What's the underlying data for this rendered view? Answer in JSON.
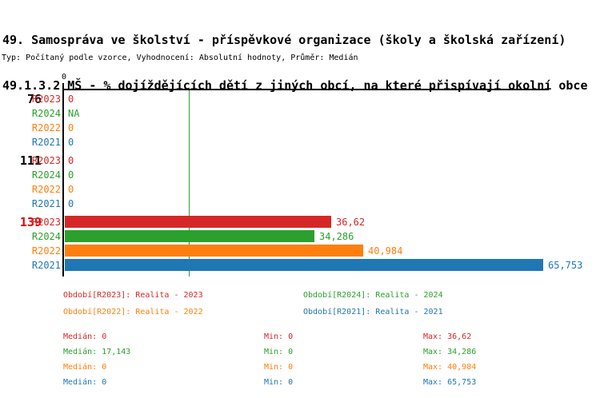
{
  "header": {
    "title_line1": "49. Samospráva ve školství - příspěvkové organizace (školy a školská zařízení)",
    "title_line2": "49.1.3.2 MŠ - % dojíždějících dětí z jiných obcí, na které přispívají okolní obce",
    "meta_line": "Typ: Počítaný podle vzorce, Vyhodnocení: Absolutní hodnoty, Průměr: Medián"
  },
  "colors": {
    "axis": "#000000",
    "r2023_red": "#d62728",
    "r2024_green": "#2ca02c",
    "r2022_orange": "#ff7f0e",
    "r2021_blue": "#1f77b4",
    "highlight_group_red": "#e00000",
    "group_label_black": "#000000",
    "median_marker_green": "#2ca02c"
  },
  "chart_data": {
    "type": "bar",
    "orientation": "horizontal",
    "x_axis": {
      "tick_labels": [
        "0"
      ],
      "xlim": [
        0,
        66.5
      ],
      "grid": false
    },
    "median_marker_value": 17.143,
    "series_colors": {
      "R2023": "#d62728",
      "R2024": "#2ca02c",
      "R2022": "#ff7f0e",
      "R2021": "#1f77b4"
    },
    "groups": [
      {
        "label": "76",
        "highlight": false,
        "rows": [
          {
            "series": "R2023",
            "value": 0,
            "display": "0"
          },
          {
            "series": "R2024",
            "value": null,
            "display": "NA"
          },
          {
            "series": "R2022",
            "value": 0,
            "display": "0"
          },
          {
            "series": "R2021",
            "value": 0,
            "display": "0"
          }
        ]
      },
      {
        "label": "111",
        "highlight": false,
        "rows": [
          {
            "series": "R2023",
            "value": 0,
            "display": "0"
          },
          {
            "series": "R2024",
            "value": 0,
            "display": "0"
          },
          {
            "series": "R2022",
            "value": 0,
            "display": "0"
          },
          {
            "series": "R2021",
            "value": 0,
            "display": "0"
          }
        ]
      },
      {
        "label": "139",
        "highlight": true,
        "rows": [
          {
            "series": "R2023",
            "value": 36.62,
            "display": "36,62"
          },
          {
            "series": "R2024",
            "value": 34.286,
            "display": "34,286"
          },
          {
            "series": "R2022",
            "value": 40.984,
            "display": "40,984"
          },
          {
            "series": "R2021",
            "value": 65.753,
            "display": "65,753"
          }
        ]
      }
    ]
  },
  "legend": [
    {
      "text": "Období[R2023]: Realita - 2023",
      "color": "#d62728"
    },
    {
      "text": "Období[R2024]: Realita - 2024",
      "color": "#2ca02c"
    },
    {
      "text": "Období[R2022]: Realita - 2022",
      "color": "#ff7f0e"
    },
    {
      "text": "Období[R2021]: Realita - 2021",
      "color": "#1f77b4"
    }
  ],
  "stats": {
    "labels": {
      "median": "Medián:",
      "min": "Min:",
      "max": "Max:"
    },
    "rows": [
      {
        "median": "0",
        "min": "0",
        "max": "36,62",
        "color": "#d62728"
      },
      {
        "median": "17,143",
        "min": "0",
        "max": "34,286",
        "color": "#2ca02c"
      },
      {
        "median": "0",
        "min": "0",
        "max": "40,984",
        "color": "#ff7f0e"
      },
      {
        "median": "0",
        "min": "0",
        "max": "65,753",
        "color": "#1f77b4"
      }
    ]
  }
}
